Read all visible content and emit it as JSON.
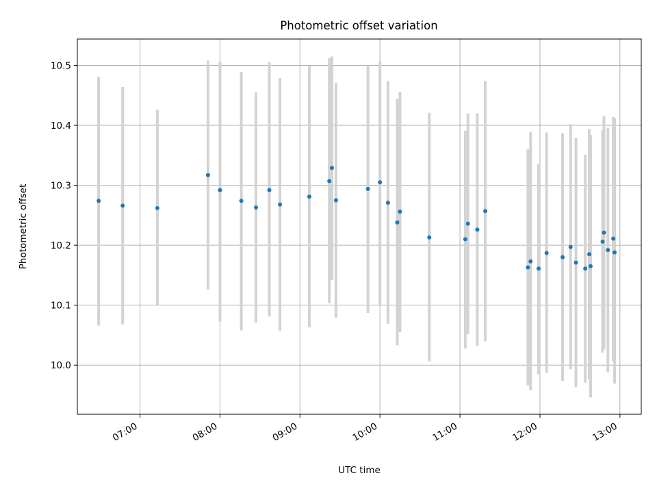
{
  "chart_data": {
    "type": "scatter",
    "title": "Photometric offset variation",
    "xlabel": "UTC time",
    "ylabel": "Photometric offset",
    "x_ticks": [
      "07:00",
      "08:00",
      "09:00",
      "10:00",
      "11:00",
      "12:00",
      "13:00"
    ],
    "y_ticks": [
      "10.0",
      "10.1",
      "10.2",
      "10.3",
      "10.4",
      "10.5"
    ],
    "x_range": [
      "06:13",
      "13:16"
    ],
    "ylim": [
      9.918,
      10.544
    ],
    "grid": true,
    "point_color": "#1f77b4",
    "errorbar_color": "#d3d3d3",
    "points": [
      {
        "t": "06:29",
        "y": 10.274,
        "lo": 10.066,
        "hi": 10.481
      },
      {
        "t": "06:47",
        "y": 10.266,
        "lo": 10.068,
        "hi": 10.464
      },
      {
        "t": "07:13",
        "y": 10.262,
        "lo": 10.1,
        "hi": 10.426
      },
      {
        "t": "07:51",
        "y": 10.317,
        "lo": 10.126,
        "hi": 10.508
      },
      {
        "t": "08:00",
        "y": 10.292,
        "lo": 10.073,
        "hi": 10.506
      },
      {
        "t": "08:16",
        "y": 10.274,
        "lo": 10.058,
        "hi": 10.489
      },
      {
        "t": "08:27",
        "y": 10.263,
        "lo": 10.071,
        "hi": 10.455
      },
      {
        "t": "08:37",
        "y": 10.292,
        "lo": 10.081,
        "hi": 10.505
      },
      {
        "t": "08:45",
        "y": 10.268,
        "lo": 10.057,
        "hi": 10.479
      },
      {
        "t": "09:07",
        "y": 10.281,
        "lo": 10.063,
        "hi": 10.499
      },
      {
        "t": "09:22",
        "y": 10.307,
        "lo": 10.103,
        "hi": 10.512
      },
      {
        "t": "09:24",
        "y": 10.329,
        "lo": 10.142,
        "hi": 10.515
      },
      {
        "t": "09:27",
        "y": 10.275,
        "lo": 10.079,
        "hi": 10.471
      },
      {
        "t": "09:51",
        "y": 10.294,
        "lo": 10.087,
        "hi": 10.5
      },
      {
        "t": "10:00",
        "y": 10.305,
        "lo": 10.1,
        "hi": 10.507
      },
      {
        "t": "10:06",
        "y": 10.271,
        "lo": 10.069,
        "hi": 10.474
      },
      {
        "t": "10:13",
        "y": 10.238,
        "lo": 10.033,
        "hi": 10.444
      },
      {
        "t": "10:15",
        "y": 10.256,
        "lo": 10.055,
        "hi": 10.456
      },
      {
        "t": "10:37",
        "y": 10.213,
        "lo": 10.006,
        "hi": 10.421
      },
      {
        "t": "11:04",
        "y": 10.21,
        "lo": 10.028,
        "hi": 10.391
      },
      {
        "t": "11:06",
        "y": 10.236,
        "lo": 10.052,
        "hi": 10.42
      },
      {
        "t": "11:13",
        "y": 10.226,
        "lo": 10.032,
        "hi": 10.42
      },
      {
        "t": "11:19",
        "y": 10.257,
        "lo": 10.04,
        "hi": 10.474
      },
      {
        "t": "11:51",
        "y": 10.163,
        "lo": 9.966,
        "hi": 10.361
      },
      {
        "t": "11:53",
        "y": 10.173,
        "lo": 9.958,
        "hi": 10.389
      },
      {
        "t": "11:59",
        "y": 10.161,
        "lo": 9.985,
        "hi": 10.336
      },
      {
        "t": "12:05",
        "y": 10.187,
        "lo": 9.987,
        "hi": 10.388
      },
      {
        "t": "12:17",
        "y": 10.18,
        "lo": 9.974,
        "hi": 10.387
      },
      {
        "t": "12:23",
        "y": 10.197,
        "lo": 9.993,
        "hi": 10.402
      },
      {
        "t": "12:27",
        "y": 10.171,
        "lo": 9.963,
        "hi": 10.379
      },
      {
        "t": "12:34",
        "y": 10.161,
        "lo": 9.971,
        "hi": 10.351
      },
      {
        "t": "12:37",
        "y": 10.185,
        "lo": 9.976,
        "hi": 10.394
      },
      {
        "t": "12:38",
        "y": 10.165,
        "lo": 9.946,
        "hi": 10.384
      },
      {
        "t": "12:47",
        "y": 10.206,
        "lo": 10.021,
        "hi": 10.392
      },
      {
        "t": "12:48",
        "y": 10.221,
        "lo": 10.027,
        "hi": 10.415
      },
      {
        "t": "12:51",
        "y": 10.192,
        "lo": 9.988,
        "hi": 10.396
      },
      {
        "t": "12:55",
        "y": 10.211,
        "lo": 10.006,
        "hi": 10.414
      },
      {
        "t": "12:56",
        "y": 10.188,
        "lo": 9.969,
        "hi": 10.412
      }
    ]
  }
}
